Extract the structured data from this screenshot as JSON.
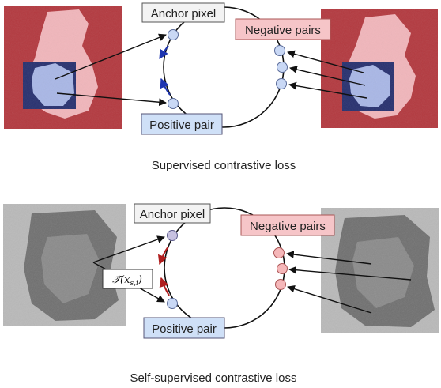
{
  "top_panel": {
    "anchor_label": "Anchor pixel",
    "negative_label": "Negative pairs",
    "positive_label": "Positive pair",
    "caption": "Supervised contrastive loss"
  },
  "bottom_panel": {
    "anchor_label": "Anchor pixel",
    "negative_label": "Negative pairs",
    "positive_label": "Positive pair",
    "transform_label": "𝒯(x",
    "transform_subscript": "s,i",
    "transform_close": ")",
    "caption": "Self-supervised contrastive loss"
  },
  "colors": {
    "mask_red": "#b3393f",
    "mask_pink": "#f1b6bb",
    "mask_blue": "#27306f",
    "mask_lightblue": "#a9b7e6",
    "node_blue": "#c9d8f5",
    "node_pink": "#f5b7b9",
    "node_anchor_bottom": "#c7c1e0",
    "label_gray_bg": "#f3f3f3",
    "label_pink_bg": "#f6c5c8",
    "label_blue_bg": "#cfe0f7",
    "arrow_blue": "#1e35b0",
    "arrow_red": "#b01e1e"
  }
}
